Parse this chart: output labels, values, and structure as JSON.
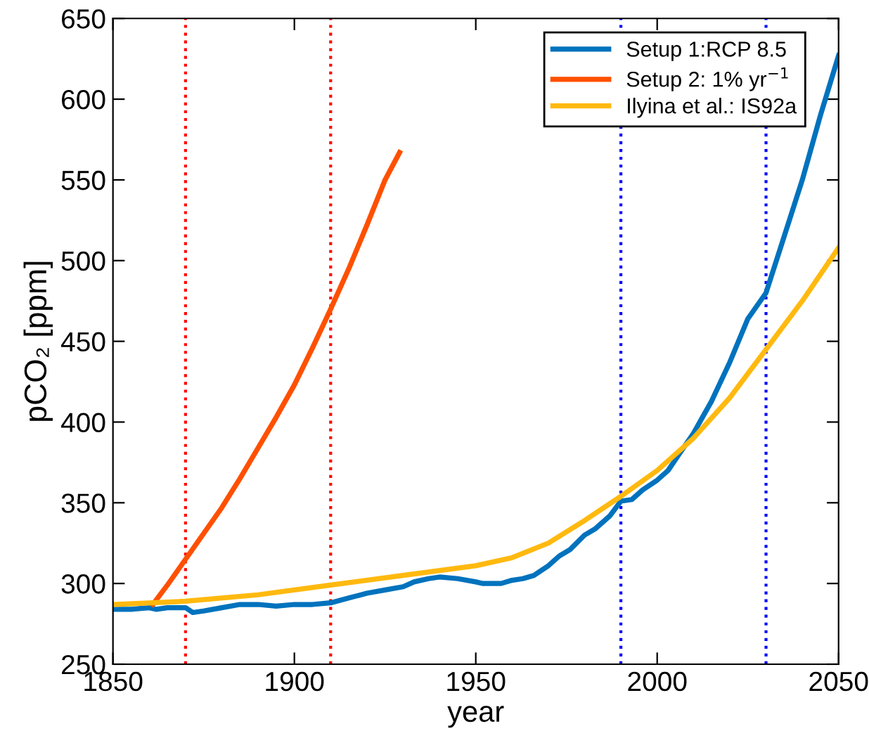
{
  "chart_data": {
    "type": "line",
    "xlabel": "year",
    "ylabel": "pCO₂ [ppm]",
    "xlim": [
      1850,
      2050
    ],
    "xticks": [
      1850,
      1900,
      1950,
      2000,
      2050
    ],
    "ylim": [
      250,
      650
    ],
    "yticks": [
      250,
      300,
      350,
      400,
      450,
      500,
      550,
      600,
      650
    ],
    "grid": false,
    "legend": "top right",
    "line_style": "solid",
    "marker": "none",
    "series": [
      {
        "name": "Setup 1:RCP 8.5",
        "color": "#0072bd",
        "x": [
          1850,
          1855,
          1860,
          1862,
          1865,
          1870,
          1872,
          1875,
          1880,
          1885,
          1890,
          1895,
          1900,
          1905,
          1910,
          1915,
          1920,
          1925,
          1930,
          1933,
          1937,
          1940,
          1945,
          1950,
          1952,
          1957,
          1960,
          1963,
          1966,
          1970,
          1973,
          1976,
          1980,
          1983,
          1987,
          1990,
          1993,
          1996,
          2000,
          2003,
          2006,
          2010,
          2015,
          2020,
          2025,
          2030,
          2035,
          2040,
          2045,
          2050
        ],
        "values": [
          284,
          284,
          285,
          284,
          285,
          285,
          282,
          283,
          285,
          287,
          287,
          286,
          287,
          287,
          288,
          291,
          294,
          296,
          298,
          301,
          303,
          304,
          303,
          301,
          300,
          300,
          302,
          303,
          305,
          311,
          317,
          321,
          330,
          334,
          342,
          351,
          352,
          358,
          364,
          370,
          380,
          393,
          413,
          437,
          464,
          480,
          515,
          550,
          590,
          627
        ]
      },
      {
        "name": "Setup 2: 1% yr$^{−1}$",
        "color": "#ff5000",
        "x": [
          1861,
          1865,
          1870,
          1875,
          1880,
          1885,
          1890,
          1895,
          1900,
          1905,
          1910,
          1915,
          1920,
          1925,
          1929
        ],
        "values": [
          287,
          299,
          315,
          331,
          347,
          365,
          384,
          403,
          423,
          446,
          470,
          495,
          522,
          550,
          567
        ]
      },
      {
        "name": "Ilyina et al.: IS92a",
        "color": "#ffb90f",
        "x": [
          1850,
          1870,
          1890,
          1910,
          1930,
          1950,
          1960,
          1970,
          1980,
          1990,
          2000,
          2010,
          2020,
          2030,
          2040,
          2050
        ],
        "values": [
          287,
          289,
          293,
          299,
          305,
          311,
          316,
          325,
          339,
          354,
          370,
          390,
          415,
          445,
          475,
          508
        ]
      }
    ],
    "ref_lines": [
      {
        "axis": "x",
        "value": 1870,
        "color": "#ff0000",
        "line_style": "dotted"
      },
      {
        "axis": "x",
        "value": 1910,
        "color": "#ff0000",
        "line_style": "dotted"
      },
      {
        "axis": "x",
        "value": 1990,
        "color": "#0000ff",
        "line_style": "dotted"
      },
      {
        "axis": "x",
        "value": 2030,
        "color": "#0000ff",
        "line_style": "dotted"
      }
    ]
  }
}
